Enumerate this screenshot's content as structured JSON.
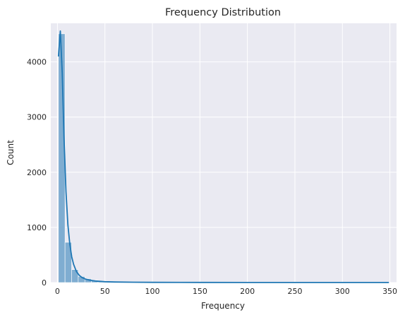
{
  "chart_data": {
    "type": "bar",
    "title": "Frequency Distribution",
    "xlabel": "Frequency",
    "ylabel": "Count",
    "xlim": [
      -7,
      357
    ],
    "ylim": [
      0,
      4700
    ],
    "xticks": [
      0,
      50,
      100,
      150,
      200,
      250,
      300,
      350
    ],
    "yticks": [
      0,
      1000,
      2000,
      3000,
      4000
    ],
    "grid": true,
    "background": "#eaeaf2",
    "bar_color": "#7fadd1",
    "kde_color": "#1f77b4",
    "bins": {
      "start": 1,
      "width": 6.96,
      "counts": [
        4510,
        730,
        235,
        110,
        70,
        40,
        28,
        20,
        15,
        12,
        10,
        8,
        7,
        6,
        5,
        5,
        4,
        4,
        3,
        3,
        3,
        2,
        2,
        2,
        2,
        2,
        2,
        2,
        1,
        1,
        1,
        1,
        1,
        1,
        1,
        1,
        1,
        1,
        1,
        1,
        1,
        1,
        1,
        1,
        1,
        1,
        1,
        1,
        1,
        1
      ]
    },
    "kde": {
      "x": [
        1,
        3,
        5,
        7,
        9,
        11,
        13,
        15,
        17,
        20,
        23,
        26,
        30,
        35,
        40,
        50,
        60,
        80,
        100,
        150,
        200,
        250,
        300,
        349
      ],
      "y": [
        4100,
        4560,
        3800,
        2600,
        1650,
        1050,
        700,
        470,
        330,
        200,
        130,
        90,
        60,
        40,
        28,
        15,
        10,
        6,
        4,
        2,
        1,
        1,
        1,
        1
      ]
    }
  }
}
